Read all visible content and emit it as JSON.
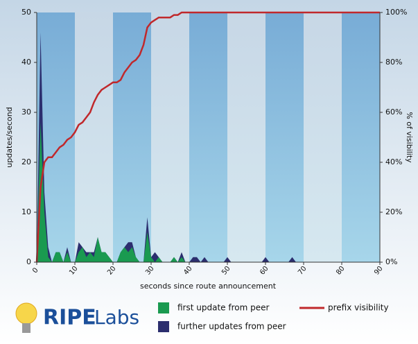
{
  "chart_data": {
    "type": "area",
    "x": [
      0,
      1,
      2,
      3,
      4,
      5,
      6,
      7,
      8,
      9,
      10,
      11,
      12,
      13,
      14,
      15,
      16,
      17,
      18,
      19,
      20,
      21,
      22,
      23,
      24,
      25,
      26,
      27,
      28,
      29,
      30,
      31,
      32,
      33,
      34,
      35,
      36,
      37,
      38,
      39,
      40,
      41,
      42,
      43,
      44,
      45,
      46,
      47,
      48,
      49,
      50,
      51,
      52,
      53,
      54,
      55,
      56,
      57,
      58,
      59,
      60,
      61,
      62,
      63,
      64,
      65,
      66,
      67,
      68,
      69,
      70,
      71,
      72,
      73,
      74,
      75,
      76,
      77,
      78,
      79,
      80,
      81,
      82,
      83,
      84,
      85,
      86,
      87,
      88,
      89,
      90
    ],
    "series": [
      {
        "name": "first update from peer",
        "color": "#1a9a50",
        "values": [
          0,
          28,
          10,
          1,
          0,
          2,
          2,
          0,
          2,
          0,
          0,
          2,
          3,
          1,
          2,
          1,
          5,
          2,
          2,
          1,
          0,
          0,
          2,
          3,
          2,
          3,
          1,
          0,
          0,
          6,
          1,
          0,
          1,
          0,
          0,
          0,
          1,
          0,
          1,
          0,
          0,
          0,
          0,
          0,
          0,
          0,
          0,
          0,
          0,
          0,
          0,
          0,
          0,
          0,
          0,
          0,
          0,
          0,
          0,
          0,
          0,
          0,
          0,
          0,
          0,
          0,
          0,
          0,
          0,
          0,
          0,
          0,
          0,
          0,
          0,
          0,
          0,
          0,
          0,
          0,
          0,
          0,
          0,
          0,
          0,
          0,
          0,
          0,
          0,
          0,
          0
        ]
      },
      {
        "name": "further updates from peer",
        "color": "#2b2e6e",
        "values": [
          0,
          18,
          4,
          2,
          0,
          0,
          0,
          0,
          1,
          0,
          0,
          2,
          0,
          1,
          0,
          1,
          0,
          0,
          0,
          0,
          0,
          0,
          0,
          0,
          2,
          1,
          0,
          0,
          0,
          3,
          0,
          2,
          0,
          0,
          0,
          0,
          0,
          0,
          1,
          0,
          0,
          1,
          1,
          0,
          1,
          0,
          0,
          0,
          0,
          0,
          1,
          0,
          0,
          0,
          0,
          0,
          0,
          0,
          0,
          0,
          1,
          0,
          0,
          0,
          0,
          0,
          0,
          1,
          0,
          0,
          0,
          0,
          0,
          0,
          0,
          0,
          0,
          0,
          0,
          0,
          0,
          0,
          0,
          0,
          0,
          0,
          0,
          0,
          0,
          0,
          0
        ]
      },
      {
        "name": "prefix visibility",
        "color": "#c0282b",
        "axis": "y2",
        "values": [
          0,
          30,
          40,
          42,
          42,
          44,
          46,
          47,
          49,
          50,
          52,
          55,
          56,
          58,
          60,
          64,
          67,
          69,
          70,
          71,
          72,
          72,
          73,
          76,
          78,
          80,
          81,
          83,
          87,
          94,
          96,
          97,
          98,
          98,
          98,
          98,
          99,
          99,
          100,
          100,
          100,
          100,
          100,
          100,
          100,
          100,
          100,
          100,
          100,
          100,
          100,
          100,
          100,
          100,
          100,
          100,
          100,
          100,
          100,
          100,
          100,
          100,
          100,
          100,
          100,
          100,
          100,
          100,
          100,
          100,
          100,
          100,
          100,
          100,
          100,
          100,
          100,
          100,
          100,
          100,
          100,
          100,
          100,
          100,
          100,
          100,
          100,
          100,
          100,
          100,
          100
        ]
      }
    ],
    "xlabel": "seconds since route announcement",
    "ylabel": "updates/second",
    "y2label": "% of visibility",
    "xlim": [
      0,
      90
    ],
    "xticks": [
      0,
      10,
      20,
      30,
      40,
      50,
      60,
      70,
      80,
      90
    ],
    "ylim": [
      0,
      50
    ],
    "yticks": [
      0,
      10,
      20,
      30,
      40,
      50
    ],
    "y2lim": [
      0,
      100
    ],
    "y2ticks": [
      {
        "value": 0,
        "label": "0%"
      },
      {
        "value": 20,
        "label": "20%"
      },
      {
        "value": 40,
        "label": "40%"
      },
      {
        "value": 60,
        "label": "60%"
      },
      {
        "value": 80,
        "label": "80%"
      },
      {
        "value": 100,
        "label": "100%"
      }
    ]
  },
  "logo": {
    "bold": "RIPE",
    "light": "Labs"
  }
}
